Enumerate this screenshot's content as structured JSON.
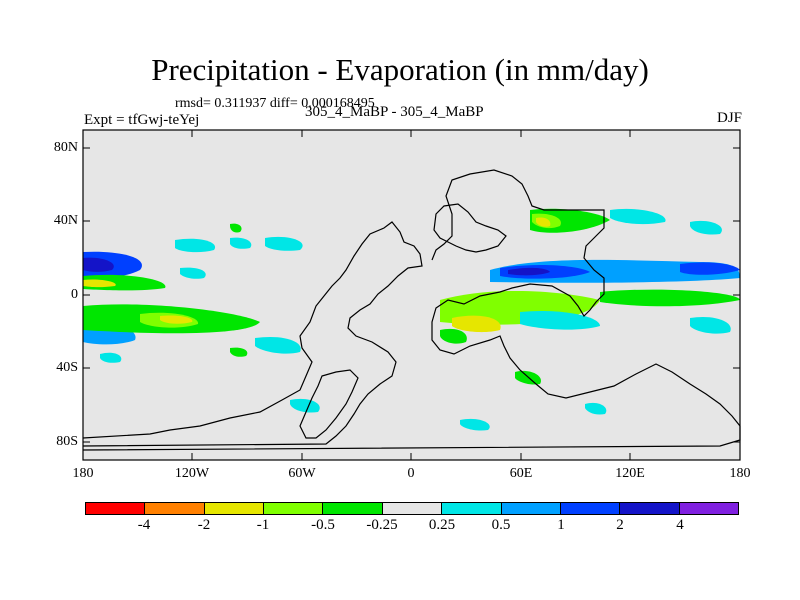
{
  "figure": {
    "title": "Precipitation - Evaporation (in mm/day)",
    "stats": "rmsd= 0.311937 diff= 0.000168495",
    "expt_label": "Expt = tfGwj-teYej",
    "case_label": "305_4_MaBP - 305_4_MaBP",
    "season": "DJF"
  },
  "axes": {
    "lat_labels": [
      "80N",
      "40N",
      "0",
      "40S",
      "80S"
    ],
    "lon_labels": [
      "180",
      "120W",
      "60W",
      "0",
      "60E",
      "120E",
      "180"
    ]
  },
  "colorbar": {
    "labels": [
      "-4",
      "-2",
      "-1",
      "-0.5",
      "-0.25",
      "0.25",
      "0.5",
      "1",
      "2",
      "4"
    ],
    "colors": [
      "#ff0000",
      "#ff8000",
      "#e6e600",
      "#80ff00",
      "#00e600",
      "#e6e6e6",
      "#00e6e6",
      "#00a0ff",
      "#0040ff",
      "#1414c8",
      "#8020e0"
    ]
  },
  "map_colors": {
    "background": "#e6e6e6"
  }
}
